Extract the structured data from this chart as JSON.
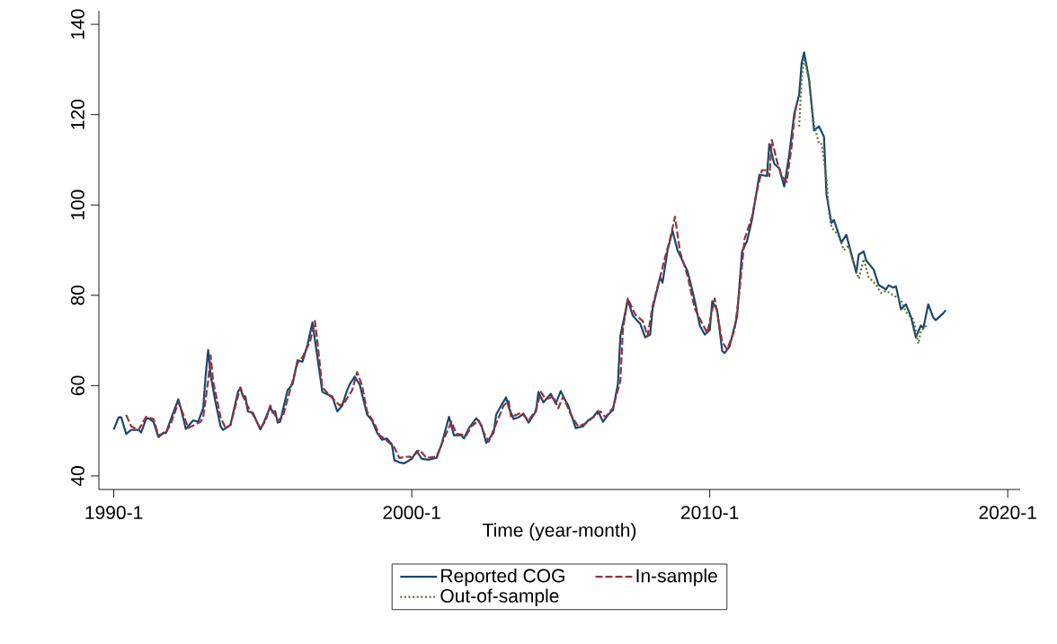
{
  "chart_data": {
    "type": "line",
    "xlabel": "Time (year-month)",
    "xlim": [
      "1989-07",
      "2020-06"
    ],
    "ylim": [
      37,
      143
    ],
    "xticks": [
      {
        "value": "1990-01",
        "label": "1990-1"
      },
      {
        "value": "2000-01",
        "label": "2000-1"
      },
      {
        "value": "2010-01",
        "label": "2010-1"
      },
      {
        "value": "2020-01",
        "label": "2020-1"
      }
    ],
    "yticks": [
      40,
      60,
      80,
      100,
      120,
      140
    ],
    "legend": "bottom",
    "marker": "none",
    "series": [
      {
        "name": "Reported COG",
        "color": "#1a476f",
        "line_style": "solid",
        "x": [
          "1990-01",
          "1990-03",
          "1990-04",
          "1990-06",
          "1990-08",
          "1990-11",
          "1990-12",
          "1991-02",
          "1991-03",
          "1991-05",
          "1991-07",
          "1991-09",
          "1991-10",
          "1991-12",
          "1992-03",
          "1992-04",
          "1992-06",
          "1992-09",
          "1992-11",
          "1993-01",
          "1993-02",
          "1993-03",
          "1993-04",
          "1993-06",
          "1993-08",
          "1993-09",
          "1993-12",
          "1994-03",
          "1994-04",
          "1994-05",
          "1994-06",
          "1994-07",
          "1994-09",
          "1994-12",
          "1995-01",
          "1995-04",
          "1995-05",
          "1995-06",
          "1995-07",
          "1995-08",
          "1995-11",
          "1996-01",
          "1996-03",
          "1996-05",
          "1996-07",
          "1996-09",
          "1996-11",
          "1997-01",
          "1997-04",
          "1997-05",
          "1997-07",
          "1997-09",
          "1997-11",
          "1997-12",
          "1998-02",
          "1998-04",
          "1998-07",
          "1998-09",
          "1998-11",
          "1999-01",
          "1999-03",
          "1999-05",
          "1999-06",
          "1999-08",
          "1999-10",
          "2000-01",
          "2000-03",
          "2000-05",
          "2000-08",
          "2000-11",
          "2001-01",
          "2001-04",
          "2001-06",
          "2001-09",
          "2001-10",
          "2001-12",
          "2002-03",
          "2002-05",
          "2002-07",
          "2002-10",
          "2002-11",
          "2003-01",
          "2003-03",
          "2003-04",
          "2003-06",
          "2003-08",
          "2003-10",
          "2003-12",
          "2004-03",
          "2004-04",
          "2004-06",
          "2004-09",
          "2004-11",
          "2005-01",
          "2005-03",
          "2005-04",
          "2005-07",
          "2005-10",
          "2005-12",
          "2006-02",
          "2006-04",
          "2006-06",
          "2006-08",
          "2006-10",
          "2006-12",
          "2007-01",
          "2007-03",
          "2007-04",
          "2007-06",
          "2007-09",
          "2007-11",
          "2008-01",
          "2008-02",
          "2008-05",
          "2008-06",
          "2008-08",
          "2008-10",
          "2008-12",
          "2009-04",
          "2009-05",
          "2009-07",
          "2009-09",
          "2009-11",
          "2010-01",
          "2010-02",
          "2010-04",
          "2010-06",
          "2010-07",
          "2010-09",
          "2010-12",
          "2011-02",
          "2011-04",
          "2011-06",
          "2011-09",
          "2011-12",
          "2012-01",
          "2012-03",
          "2012-05",
          "2012-07",
          "2012-09",
          "2012-11",
          "2013-01",
          "2013-02",
          "2013-03",
          "2013-05",
          "2013-07",
          "2013-09",
          "2013-11",
          "2013-12",
          "2014-02",
          "2014-03",
          "2014-06",
          "2014-08",
          "2014-12",
          "2015-01",
          "2015-03",
          "2015-04",
          "2015-07",
          "2015-09",
          "2015-12",
          "2016-01",
          "2016-03",
          "2016-04",
          "2016-06",
          "2016-08",
          "2016-10",
          "2016-12",
          "2017-02",
          "2017-03",
          "2017-05",
          "2017-07",
          "2017-08",
          "2017-11",
          "2017-12"
        ],
        "values": [
          50.3,
          53.0,
          53.0,
          49.3,
          50.2,
          50.2,
          49.6,
          52.6,
          52.8,
          52.0,
          48.6,
          49.6,
          49.5,
          52.6,
          57.0,
          55.0,
          50.4,
          52.3,
          52.0,
          55.0,
          62.3,
          67.9,
          62.3,
          56.3,
          51.0,
          50.2,
          51.3,
          58.6,
          59.5,
          57.6,
          57.6,
          54.3,
          54.0,
          50.3,
          51.3,
          55.3,
          54.0,
          54.3,
          51.8,
          52.0,
          59.0,
          60.3,
          65.6,
          65.3,
          69.0,
          74.0,
          66.3,
          58.6,
          57.8,
          57.6,
          54.3,
          55.6,
          59.0,
          60.3,
          62.0,
          60.3,
          53.6,
          52.3,
          49.6,
          48.0,
          48.3,
          47.0,
          43.5,
          43.0,
          42.8,
          43.8,
          45.5,
          43.8,
          43.6,
          44.0,
          47.0,
          53.1,
          49.0,
          49.0,
          48.3,
          50.6,
          52.8,
          51.3,
          47.3,
          49.6,
          53.6,
          55.6,
          57.4,
          55.3,
          52.6,
          53.0,
          53.8,
          51.8,
          54.3,
          58.6,
          56.3,
          58.2,
          56.0,
          58.8,
          56.6,
          55.6,
          50.6,
          51.0,
          52.3,
          53.0,
          54.4,
          52.0,
          53.5,
          54.6,
          60.3,
          71.0,
          76.3,
          79.0,
          75.5,
          73.7,
          70.7,
          71.3,
          77.0,
          84.0,
          82.8,
          90.0,
          94.3,
          90.0,
          85.4,
          83.3,
          78.7,
          73.3,
          71.3,
          72.3,
          78.7,
          76.7,
          67.7,
          67.2,
          68.7,
          75.3,
          89.7,
          92.0,
          96.7,
          106.7,
          106.4,
          113.5,
          109.1,
          108.1,
          104.1,
          111.1,
          120.1,
          124.4,
          131.4,
          133.8,
          127.8,
          116.5,
          117.4,
          115.1,
          102.4,
          96.0,
          96.7,
          91.7,
          93.4,
          85.0,
          89.0,
          89.7,
          87.7,
          85.7,
          82.3,
          81.3,
          82.2,
          81.7,
          82.0,
          76.9,
          78.0,
          75.3,
          70.7,
          73.3,
          72.7,
          78.0,
          75.1,
          74.5,
          76.0,
          76.7
        ]
      },
      {
        "name": "In-sample",
        "color": "#90353b",
        "line_style": "dashed",
        "x": [
          "1990-06",
          "1990-08",
          "1990-11",
          "1991-02",
          "1991-05",
          "1991-07",
          "1991-10",
          "1991-12",
          "1992-03",
          "1992-05",
          "1992-07",
          "1992-12",
          "1993-01",
          "1993-03",
          "1993-04",
          "1993-05",
          "1993-08",
          "1993-10",
          "1993-12",
          "1994-03",
          "1994-04",
          "1994-06",
          "1994-09",
          "1994-12",
          "1995-02",
          "1995-04",
          "1995-07",
          "1995-09",
          "1995-12",
          "1996-03",
          "1996-05",
          "1996-08",
          "1996-10",
          "1996-11",
          "1997-01",
          "1997-04",
          "1997-08",
          "1997-10",
          "1998-01",
          "1998-03",
          "1998-05",
          "1998-07",
          "1998-10",
          "1998-12",
          "1999-02",
          "1999-06",
          "1999-08",
          "1999-12",
          "2000-01",
          "2000-04",
          "2000-07",
          "2000-11",
          "2001-02",
          "2001-05",
          "2001-07",
          "2001-11",
          "2002-01",
          "2002-04",
          "2002-06",
          "2002-08",
          "2002-11",
          "2003-02",
          "2003-04",
          "2003-05",
          "2003-09",
          "2003-12",
          "2004-03",
          "2004-05",
          "2004-07",
          "2004-10",
          "2004-12",
          "2005-02",
          "2005-05",
          "2005-08",
          "2005-11",
          "2006-02",
          "2006-05",
          "2006-07",
          "2006-10",
          "2007-01",
          "2007-02",
          "2007-04",
          "2007-07",
          "2007-10",
          "2007-12",
          "2008-02",
          "2008-05",
          "2008-07",
          "2008-09",
          "2008-11",
          "2009-01",
          "2009-04",
          "2009-07",
          "2009-10",
          "2009-12",
          "2010-03",
          "2010-06",
          "2010-08",
          "2010-11",
          "2011-01",
          "2011-03",
          "2011-06",
          "2011-08",
          "2011-10",
          "2011-12",
          "2012-01",
          "2012-02",
          "2012-04",
          "2012-06",
          "2012-08",
          "2012-10",
          "2012-11",
          "2012-12"
        ],
        "values": [
          53.5,
          51.0,
          50.2,
          53.1,
          52.6,
          49.0,
          49.6,
          51.6,
          56.3,
          53.6,
          50.6,
          52.0,
          53.0,
          61.0,
          66.7,
          61.0,
          53.0,
          50.6,
          51.3,
          57.6,
          59.6,
          56.3,
          53.6,
          50.6,
          52.0,
          55.6,
          52.3,
          53.0,
          59.0,
          65.0,
          66.3,
          69.7,
          74.3,
          69.7,
          59.6,
          57.8,
          55.6,
          56.3,
          59.0,
          63.0,
          60.0,
          54.3,
          51.6,
          49.0,
          48.3,
          46.3,
          44.0,
          44.3,
          44.0,
          45.8,
          44.0,
          44.3,
          48.3,
          52.0,
          49.3,
          49.0,
          51.0,
          52.3,
          49.6,
          47.6,
          51.6,
          55.6,
          56.6,
          53.0,
          54.0,
          52.3,
          54.6,
          58.6,
          57.0,
          57.6,
          55.0,
          57.6,
          53.6,
          51.0,
          51.6,
          53.0,
          54.3,
          53.0,
          55.0,
          61.0,
          72.3,
          79.3,
          75.7,
          74.3,
          71.0,
          77.7,
          84.0,
          88.4,
          92.4,
          97.4,
          89.7,
          84.4,
          77.0,
          73.7,
          71.7,
          79.3,
          69.7,
          68.0,
          72.3,
          81.0,
          92.4,
          97.4,
          103.1,
          107.7,
          107.7,
          106.4,
          114.4,
          109.8,
          106.4,
          105.1,
          113.1,
          119.1,
          122.4
        ]
      },
      {
        "name": "Out-of-sample",
        "color": "#55752f",
        "line_style": "dotted",
        "x": [
          "2013-01",
          "2013-02",
          "2013-03",
          "2013-05",
          "2013-06",
          "2013-07",
          "2013-09",
          "2013-10",
          "2013-12",
          "2014-01",
          "2014-02",
          "2014-05",
          "2014-07",
          "2014-09",
          "2014-11",
          "2015-01",
          "2015-03",
          "2015-05",
          "2015-08",
          "2015-10",
          "2015-12",
          "2016-03",
          "2016-06",
          "2016-08",
          "2016-11",
          "2017-01",
          "2017-02",
          "2017-05"
        ],
        "values": [
          117.4,
          127.8,
          132.5,
          127.8,
          122.4,
          117.8,
          113.5,
          113.5,
          105.8,
          98.4,
          95.1,
          93.1,
          90.0,
          91.0,
          87.0,
          83.7,
          88.0,
          84.0,
          82.3,
          80.5,
          81.0,
          80.0,
          79.0,
          76.3,
          74.6,
          69.3,
          72.0,
          73.7
        ]
      }
    ]
  }
}
